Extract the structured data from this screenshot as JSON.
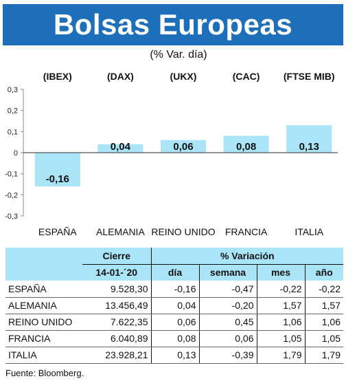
{
  "title": "Bolsas Europeas",
  "subtitle": "(% Var. día)",
  "colors": {
    "banner": "#1e6fba",
    "bar": "#a9e4f7",
    "table_header": "#a9e4f7"
  },
  "chart_data": {
    "type": "bar",
    "categories": [
      "ESPAÑA",
      "ALEMANIA",
      "REINO UNIDO",
      "FRANCIA",
      "ITALIA"
    ],
    "index_codes": [
      "(IBEX)",
      "(DAX)",
      "(UKX)",
      "(CAC)",
      "(FTSE MIB)"
    ],
    "values": [
      -0.16,
      0.04,
      0.06,
      0.08,
      0.13
    ],
    "value_labels": [
      "-0,16",
      "0,04",
      "0,06",
      "0,08",
      "0,13"
    ],
    "ylim": [
      -0.3,
      0.3
    ],
    "y_ticks": [
      0.3,
      0.2,
      0.1,
      0,
      -0.1,
      -0.2,
      -0.3
    ],
    "y_tick_labels": [
      "0,3",
      "0,2",
      "0,1",
      "0",
      "-0,1",
      "-0,2",
      "-0,3"
    ]
  },
  "table": {
    "header": {
      "cierre": "Cierre",
      "date": "14-01-´20",
      "variacion": "% Variación",
      "dia": "día",
      "semana": "semana",
      "mes": "mes",
      "ano": "año"
    },
    "rows": [
      {
        "name": "ESPAÑA",
        "cierre": "9.528,30",
        "dia": "-0,16",
        "semana": "-0,47",
        "mes": "-0,22",
        "ano": "-0,22"
      },
      {
        "name": "ALEMANIA",
        "cierre": "13.456,49",
        "dia": "0,04",
        "semana": "-0,20",
        "mes": "1,57",
        "ano": "1,57"
      },
      {
        "name": "REINO UNIDO",
        "cierre": "7.622,35",
        "dia": "0,06",
        "semana": "0,45",
        "mes": "1,06",
        "ano": "1,06"
      },
      {
        "name": "FRANCIA",
        "cierre": "6.040,89",
        "dia": "0,08",
        "semana": "0,06",
        "mes": "1,05",
        "ano": "1,05"
      },
      {
        "name": "ITALIA",
        "cierre": "23.928,21",
        "dia": "0,13",
        "semana": "-0,39",
        "mes": "1,79",
        "ano": "1,79"
      }
    ]
  },
  "source": "Fuente: Bloomberg."
}
